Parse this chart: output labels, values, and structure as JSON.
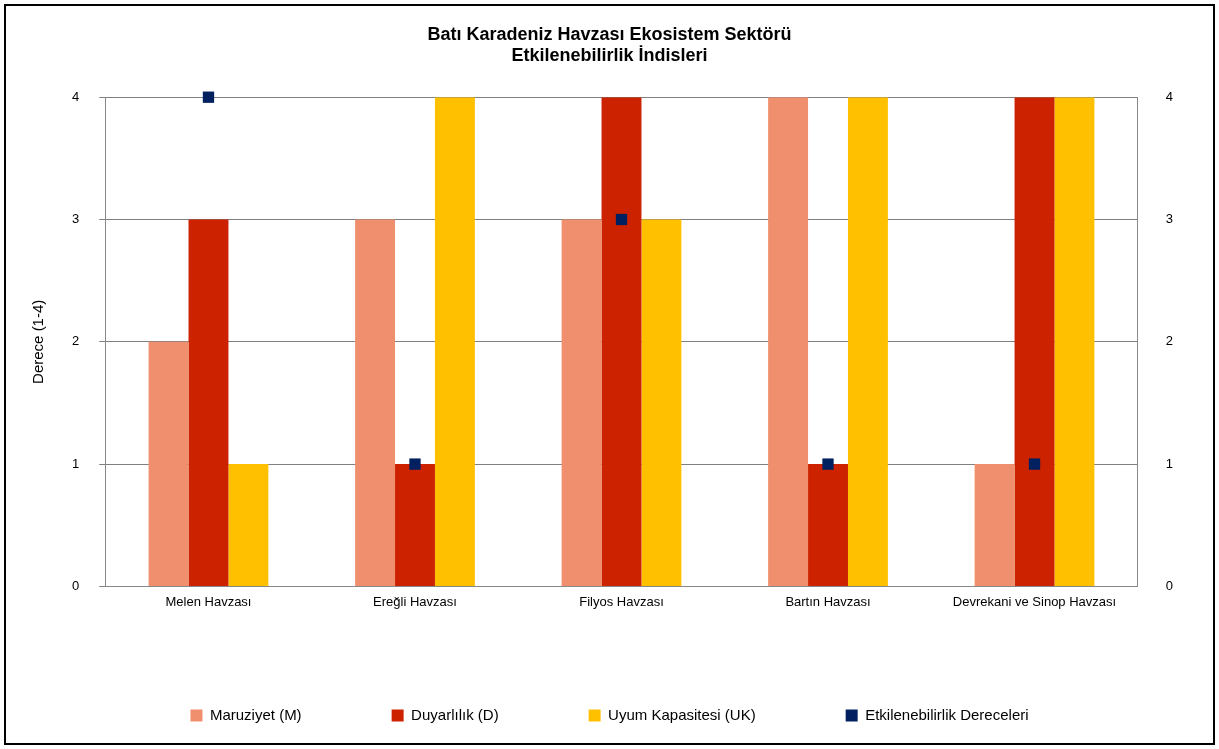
{
  "chart_data": {
    "type": "bar",
    "title": "Batı Karadeniz Havzası Ekosistem Sektörü\nEtkilenebilirlik İndisleri",
    "ylabel": "Derece (1-4)",
    "categories": [
      "Melen Havzası",
      "Ereğli Havzası",
      "Filyos Havzası",
      "Bartın Havzası",
      "Devrekani ve Sinop Havzası"
    ],
    "series": [
      {
        "name": "Maruziyet (M)",
        "color": "#f08f6e",
        "values": [
          2,
          3,
          3,
          4,
          1
        ]
      },
      {
        "name": "Duyarlılık (D)",
        "color": "#cc2200",
        "values": [
          3,
          1,
          4,
          1,
          4
        ]
      },
      {
        "name": "Uyum Kapasitesi (UK)",
        "color": "#ffc000",
        "values": [
          1,
          4,
          3,
          4,
          4
        ]
      },
      {
        "name": "Etkilenebilirlik Dereceleri",
        "color": "#002060",
        "type": "scatter",
        "marker": "square",
        "x": [
          "Melen Havzası",
          "Ereğli Havzası",
          "Filyos Havzası",
          "Bartın Havzası",
          "Devrekani ve Sinop Havzası"
        ],
        "values": [
          4,
          1,
          3,
          1,
          1
        ]
      }
    ],
    "ylim": [
      0,
      4
    ],
    "yticks": [
      0,
      1,
      2,
      3,
      4
    ],
    "y2lim": [
      0,
      4
    ],
    "y2ticks": [
      0,
      1,
      2,
      3,
      4
    ],
    "grid": "y",
    "legend": "bottom"
  }
}
